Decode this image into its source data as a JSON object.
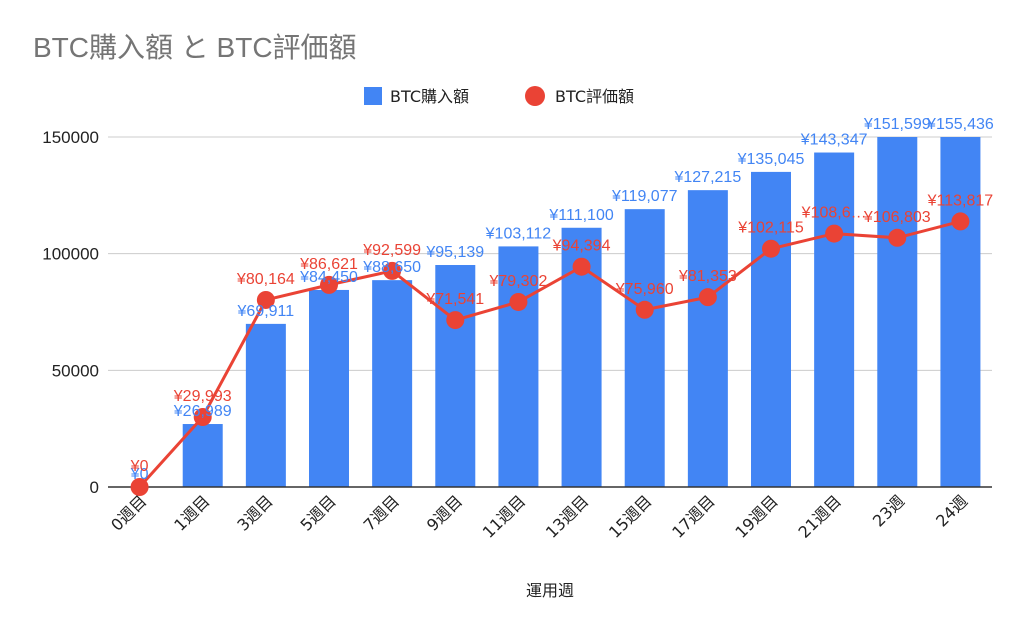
{
  "chart_data": {
    "type": "bar",
    "title": "BTC購入額 と BTC評価額",
    "xlabel": "運用週",
    "ylabel": "",
    "ylim": [
      0,
      150000
    ],
    "yticks": [
      "0",
      "50000",
      "100000",
      "150000"
    ],
    "grid": true,
    "legend_position": "top",
    "categories": [
      "0週目",
      "1週目",
      "3週目",
      "5週目",
      "7週目",
      "9週目",
      "11週目",
      "13週目",
      "15週目",
      "17週目",
      "19週目",
      "21週目",
      "23週",
      "24週"
    ],
    "series": [
      {
        "name": "BTC購入額",
        "type": "bar",
        "color": "#4285f4",
        "values": [
          0,
          26989,
          69911,
          84450,
          88650,
          95139,
          103112,
          111100,
          119077,
          127215,
          135045,
          143347,
          151599,
          155436
        ],
        "labels": [
          "¥0",
          "¥26,989",
          "¥69,911",
          "¥84,450",
          "¥88,650",
          "¥95,139",
          "¥103,112",
          "¥111,100",
          "¥119,077",
          "¥127,215",
          "¥135,045",
          "¥143,347",
          "¥151,599",
          "¥155,436"
        ]
      },
      {
        "name": "BTC評価額",
        "type": "line",
        "color": "#ea4335",
        "values": [
          0,
          29993,
          80164,
          86621,
          92599,
          71541,
          79302,
          94394,
          75960,
          81353,
          102115,
          108600,
          106803,
          113817
        ],
        "labels": [
          "¥0",
          "¥29,993",
          "¥80,164",
          "¥86,621",
          "¥92,599",
          "¥71,541",
          "¥79,302",
          "¥94,394",
          "¥75,960",
          "¥81,353",
          "¥102,115",
          "¥108,6…",
          "¥106,803",
          "¥113,817"
        ]
      }
    ]
  }
}
